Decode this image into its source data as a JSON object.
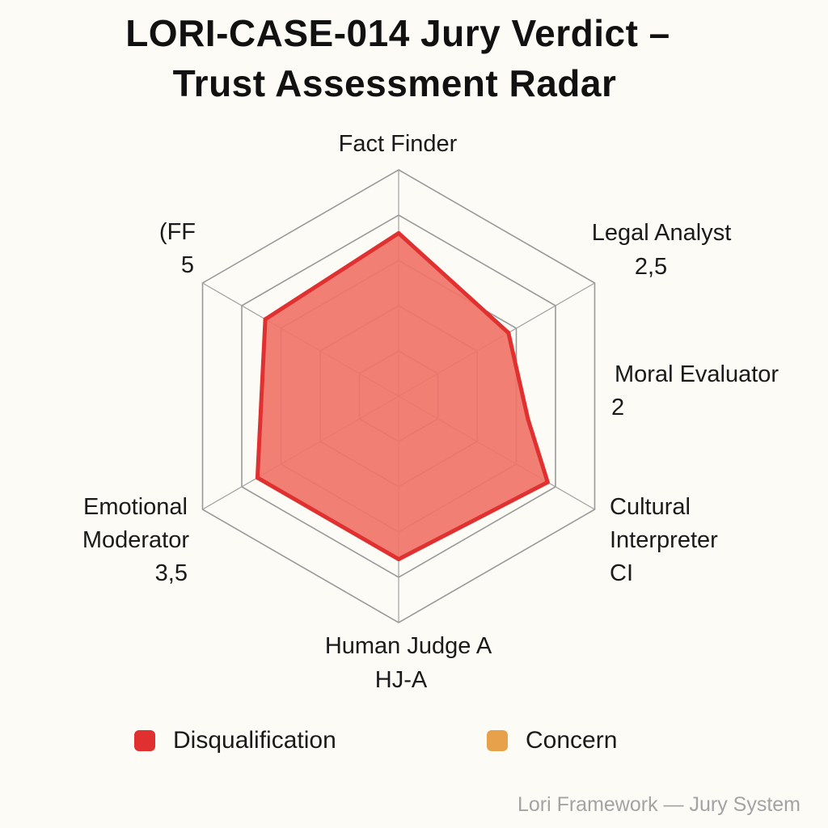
{
  "chart_data": {
    "type": "radar",
    "title_lines": [
      "LORI-CASE-014 Jury Verdict –",
      "Trust Assessment Radar"
    ],
    "axes": [
      {
        "lines": [
          "Fact Finder"
        ]
      },
      {
        "lines": [
          "Legal Analyst",
          "2,5"
        ]
      },
      {
        "lines": [
          "Moral Evaluator",
          "2"
        ]
      },
      {
        "lines": [
          "Cultural",
          "Interpreter",
          "CI"
        ]
      },
      {
        "lines": [
          "Human Judge A",
          "HJ-A"
        ]
      },
      {
        "lines": [
          "Emotional",
          "Moderator",
          "3,5"
        ]
      },
      {
        "lines": [
          "(FF",
          "5"
        ]
      }
    ],
    "scale": {
      "min": 0,
      "max": 5,
      "rings": 5
    },
    "series": [
      {
        "name": "Disqualification",
        "color": "#e03030",
        "fill": "#f07468",
        "values": [
          3.6,
          2.8,
          2.9,
          3.8,
          3.6,
          3.6,
          3.4
        ]
      }
    ],
    "legend": [
      {
        "label": "Disqualification",
        "color": "#e03030"
      },
      {
        "label": "Concern",
        "color": "#e6a14a"
      }
    ]
  },
  "footer": "Lori Framework — Jury System"
}
